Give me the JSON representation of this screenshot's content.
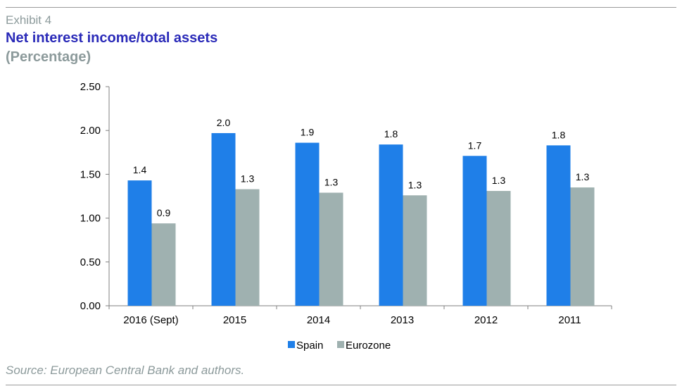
{
  "header": {
    "exhibit": "Exhibit 4",
    "title": "Net interest income/total assets",
    "subtitle": "(Percentage)"
  },
  "footer": {
    "source": "Source: European Central Bank and authors."
  },
  "chart_data": {
    "type": "bar",
    "title": "Net interest income/total assets",
    "subtitle": "(Percentage)",
    "categories": [
      "2016 (Sept)",
      "2015",
      "2014",
      "2013",
      "2012",
      "2011"
    ],
    "series": [
      {
        "name": "Spain",
        "color": "#1f7fe8",
        "values": [
          1.43,
          1.97,
          1.86,
          1.84,
          1.71,
          1.83
        ],
        "labels": [
          "1.4",
          "2.0",
          "1.9",
          "1.8",
          "1.7",
          "1.8"
        ]
      },
      {
        "name": "Eurozone",
        "color": "#9fb1b0",
        "values": [
          0.94,
          1.33,
          1.29,
          1.26,
          1.31,
          1.35
        ],
        "labels": [
          "0.9",
          "1.3",
          "1.3",
          "1.3",
          "1.3",
          "1.3"
        ]
      }
    ],
    "ylim": [
      0,
      2.5
    ],
    "yticks": [
      "0.00",
      "0.50",
      "1.00",
      "1.50",
      "2.00",
      "2.50"
    ],
    "grid": false,
    "legend": "bottom-center"
  }
}
